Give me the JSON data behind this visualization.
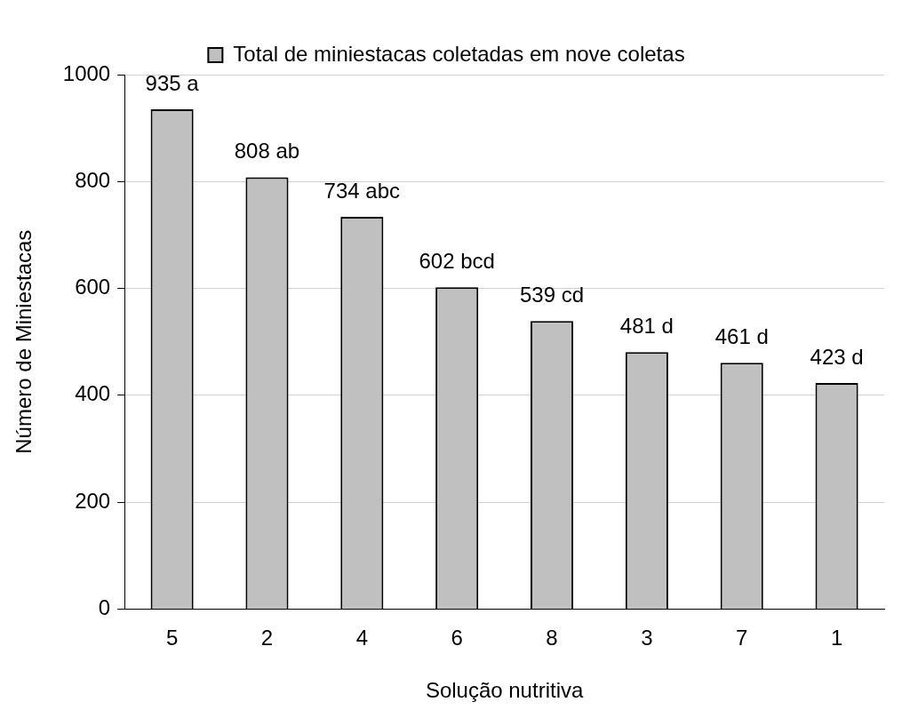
{
  "chart_data": {
    "type": "bar",
    "xlabel": "Solução nutritiva",
    "ylabel": "Número de Miniestacas",
    "categories": [
      "5",
      "2",
      "4",
      "6",
      "8",
      "3",
      "7",
      "1"
    ],
    "series": [
      {
        "name": "Total de miniestacas coletadas em nove coletas",
        "color": "#c0c0c0",
        "values": [
          935,
          808,
          734,
          602,
          539,
          481,
          461,
          423
        ],
        "value_labels": [
          "935 a",
          "808 ab",
          "734 abc",
          "602 bcd",
          "539 cd",
          "481 d",
          "461 d",
          "423 d"
        ]
      }
    ],
    "ylim": [
      0,
      1000
    ],
    "yticks": [
      0,
      200,
      400,
      600,
      800,
      1000
    ],
    "grid": "y",
    "legend": "top"
  }
}
